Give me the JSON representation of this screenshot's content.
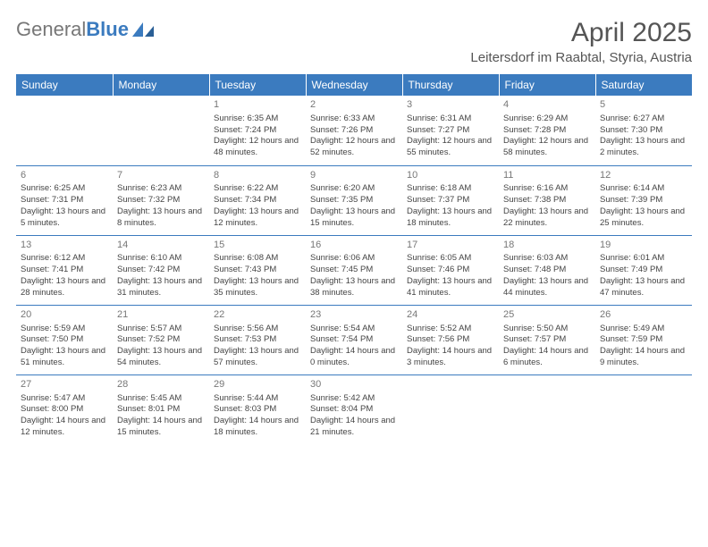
{
  "brand": {
    "name_gray": "General",
    "name_blue": "Blue",
    "accent_color": "#3b7bbf"
  },
  "header": {
    "title": "April 2025",
    "location": "Leitersdorf im Raabtal, Styria, Austria"
  },
  "calendar": {
    "type": "table",
    "columns": [
      "Sunday",
      "Monday",
      "Tuesday",
      "Wednesday",
      "Thursday",
      "Friday",
      "Saturday"
    ],
    "header_bg": "#3b7bbf",
    "header_text_color": "#ffffff",
    "row_divider_color": "#3b7bbf",
    "cell_text_color": "#444444",
    "daynum_color": "#777777",
    "weeks": [
      [
        null,
        null,
        {
          "day": "1",
          "sunrise": "Sunrise: 6:35 AM",
          "sunset": "Sunset: 7:24 PM",
          "daylight": "Daylight: 12 hours and 48 minutes."
        },
        {
          "day": "2",
          "sunrise": "Sunrise: 6:33 AM",
          "sunset": "Sunset: 7:26 PM",
          "daylight": "Daylight: 12 hours and 52 minutes."
        },
        {
          "day": "3",
          "sunrise": "Sunrise: 6:31 AM",
          "sunset": "Sunset: 7:27 PM",
          "daylight": "Daylight: 12 hours and 55 minutes."
        },
        {
          "day": "4",
          "sunrise": "Sunrise: 6:29 AM",
          "sunset": "Sunset: 7:28 PM",
          "daylight": "Daylight: 12 hours and 58 minutes."
        },
        {
          "day": "5",
          "sunrise": "Sunrise: 6:27 AM",
          "sunset": "Sunset: 7:30 PM",
          "daylight": "Daylight: 13 hours and 2 minutes."
        }
      ],
      [
        {
          "day": "6",
          "sunrise": "Sunrise: 6:25 AM",
          "sunset": "Sunset: 7:31 PM",
          "daylight": "Daylight: 13 hours and 5 minutes."
        },
        {
          "day": "7",
          "sunrise": "Sunrise: 6:23 AM",
          "sunset": "Sunset: 7:32 PM",
          "daylight": "Daylight: 13 hours and 8 minutes."
        },
        {
          "day": "8",
          "sunrise": "Sunrise: 6:22 AM",
          "sunset": "Sunset: 7:34 PM",
          "daylight": "Daylight: 13 hours and 12 minutes."
        },
        {
          "day": "9",
          "sunrise": "Sunrise: 6:20 AM",
          "sunset": "Sunset: 7:35 PM",
          "daylight": "Daylight: 13 hours and 15 minutes."
        },
        {
          "day": "10",
          "sunrise": "Sunrise: 6:18 AM",
          "sunset": "Sunset: 7:37 PM",
          "daylight": "Daylight: 13 hours and 18 minutes."
        },
        {
          "day": "11",
          "sunrise": "Sunrise: 6:16 AM",
          "sunset": "Sunset: 7:38 PM",
          "daylight": "Daylight: 13 hours and 22 minutes."
        },
        {
          "day": "12",
          "sunrise": "Sunrise: 6:14 AM",
          "sunset": "Sunset: 7:39 PM",
          "daylight": "Daylight: 13 hours and 25 minutes."
        }
      ],
      [
        {
          "day": "13",
          "sunrise": "Sunrise: 6:12 AM",
          "sunset": "Sunset: 7:41 PM",
          "daylight": "Daylight: 13 hours and 28 minutes."
        },
        {
          "day": "14",
          "sunrise": "Sunrise: 6:10 AM",
          "sunset": "Sunset: 7:42 PM",
          "daylight": "Daylight: 13 hours and 31 minutes."
        },
        {
          "day": "15",
          "sunrise": "Sunrise: 6:08 AM",
          "sunset": "Sunset: 7:43 PM",
          "daylight": "Daylight: 13 hours and 35 minutes."
        },
        {
          "day": "16",
          "sunrise": "Sunrise: 6:06 AM",
          "sunset": "Sunset: 7:45 PM",
          "daylight": "Daylight: 13 hours and 38 minutes."
        },
        {
          "day": "17",
          "sunrise": "Sunrise: 6:05 AM",
          "sunset": "Sunset: 7:46 PM",
          "daylight": "Daylight: 13 hours and 41 minutes."
        },
        {
          "day": "18",
          "sunrise": "Sunrise: 6:03 AM",
          "sunset": "Sunset: 7:48 PM",
          "daylight": "Daylight: 13 hours and 44 minutes."
        },
        {
          "day": "19",
          "sunrise": "Sunrise: 6:01 AM",
          "sunset": "Sunset: 7:49 PM",
          "daylight": "Daylight: 13 hours and 47 minutes."
        }
      ],
      [
        {
          "day": "20",
          "sunrise": "Sunrise: 5:59 AM",
          "sunset": "Sunset: 7:50 PM",
          "daylight": "Daylight: 13 hours and 51 minutes."
        },
        {
          "day": "21",
          "sunrise": "Sunrise: 5:57 AM",
          "sunset": "Sunset: 7:52 PM",
          "daylight": "Daylight: 13 hours and 54 minutes."
        },
        {
          "day": "22",
          "sunrise": "Sunrise: 5:56 AM",
          "sunset": "Sunset: 7:53 PM",
          "daylight": "Daylight: 13 hours and 57 minutes."
        },
        {
          "day": "23",
          "sunrise": "Sunrise: 5:54 AM",
          "sunset": "Sunset: 7:54 PM",
          "daylight": "Daylight: 14 hours and 0 minutes."
        },
        {
          "day": "24",
          "sunrise": "Sunrise: 5:52 AM",
          "sunset": "Sunset: 7:56 PM",
          "daylight": "Daylight: 14 hours and 3 minutes."
        },
        {
          "day": "25",
          "sunrise": "Sunrise: 5:50 AM",
          "sunset": "Sunset: 7:57 PM",
          "daylight": "Daylight: 14 hours and 6 minutes."
        },
        {
          "day": "26",
          "sunrise": "Sunrise: 5:49 AM",
          "sunset": "Sunset: 7:59 PM",
          "daylight": "Daylight: 14 hours and 9 minutes."
        }
      ],
      [
        {
          "day": "27",
          "sunrise": "Sunrise: 5:47 AM",
          "sunset": "Sunset: 8:00 PM",
          "daylight": "Daylight: 14 hours and 12 minutes."
        },
        {
          "day": "28",
          "sunrise": "Sunrise: 5:45 AM",
          "sunset": "Sunset: 8:01 PM",
          "daylight": "Daylight: 14 hours and 15 minutes."
        },
        {
          "day": "29",
          "sunrise": "Sunrise: 5:44 AM",
          "sunset": "Sunset: 8:03 PM",
          "daylight": "Daylight: 14 hours and 18 minutes."
        },
        {
          "day": "30",
          "sunrise": "Sunrise: 5:42 AM",
          "sunset": "Sunset: 8:04 PM",
          "daylight": "Daylight: 14 hours and 21 minutes."
        },
        null,
        null,
        null
      ]
    ]
  }
}
